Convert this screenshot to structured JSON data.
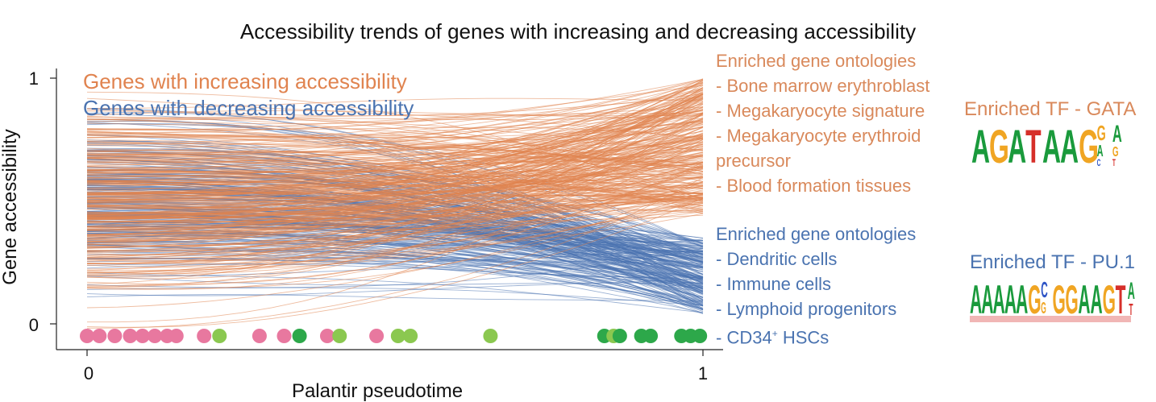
{
  "title": "Accessibility trends of genes with increasing and decreasing accessibility",
  "legend": {
    "increasing": "Genes with increasing accessibility",
    "decreasing": "Genes with decreasing accessibility"
  },
  "ontologies_increasing": {
    "header": "Enriched gene ontologies",
    "items": [
      "- Bone marrow erythroblast",
      "- Megakaryocyte signature",
      "- Megakaryocyte erythroid",
      "precursor",
      "- Blood formation tissues"
    ]
  },
  "ontologies_decreasing": {
    "header": "Enriched gene ontologies",
    "items": [
      "- Dendritic cells",
      "- Immune cells",
      "- Lymphoid progenitors"
    ],
    "last_prefix": "- CD34",
    "last_sup": "+",
    "last_suffix": " HSCs"
  },
  "tf_increasing": {
    "label": "Enriched TF - GATA",
    "motif": "AGATAAGGA"
  },
  "tf_decreasing": {
    "label": "Enriched TF - PU.1",
    "motif": "AAAAAGCGGAAGTA"
  },
  "motif_colors": {
    "A": "#1a9a3c",
    "C": "#2f55c6",
    "G": "#f0a523",
    "T": "#d62f2a"
  },
  "chart_data": {
    "type": "line",
    "title": "Accessibility trends of genes with increasing and decreasing accessibility",
    "xlabel": "Palantir pseudotime",
    "ylabel": "Gene accessibility",
    "xlim": [
      0,
      1
    ],
    "ylim": [
      0,
      1
    ],
    "xticks": [
      "0",
      "1"
    ],
    "yticks": [
      "0",
      "1"
    ],
    "grid": false,
    "series": [
      {
        "name": "Genes with increasing accessibility",
        "color": "#e0834f",
        "start_range": [
          0.18,
          0.78
        ],
        "end_range": [
          0.45,
          1.0
        ]
      },
      {
        "name": "Genes with decreasing accessibility",
        "color": "#4a73b0",
        "start_range": [
          0.22,
          0.75
        ],
        "end_range": [
          0.05,
          0.35
        ]
      }
    ],
    "cell_markers": [
      {
        "x": 0.0,
        "color": "#e8789f"
      },
      {
        "x": 0.02,
        "color": "#e8789f"
      },
      {
        "x": 0.045,
        "color": "#e8789f"
      },
      {
        "x": 0.07,
        "color": "#e8789f"
      },
      {
        "x": 0.09,
        "color": "#e8789f"
      },
      {
        "x": 0.11,
        "color": "#e8789f"
      },
      {
        "x": 0.13,
        "color": "#e8789f"
      },
      {
        "x": 0.145,
        "color": "#e8789f"
      },
      {
        "x": 0.19,
        "color": "#e8789f"
      },
      {
        "x": 0.215,
        "color": "#8bc850"
      },
      {
        "x": 0.28,
        "color": "#e8789f"
      },
      {
        "x": 0.32,
        "color": "#e8789f"
      },
      {
        "x": 0.345,
        "color": "#2da84a"
      },
      {
        "x": 0.39,
        "color": "#e8789f"
      },
      {
        "x": 0.41,
        "color": "#8bc850"
      },
      {
        "x": 0.47,
        "color": "#e8789f"
      },
      {
        "x": 0.505,
        "color": "#8bc850"
      },
      {
        "x": 0.525,
        "color": "#8bc850"
      },
      {
        "x": 0.655,
        "color": "#8bc850"
      },
      {
        "x": 0.84,
        "color": "#2da84a"
      },
      {
        "x": 0.855,
        "color": "#8bc850"
      },
      {
        "x": 0.865,
        "color": "#2da84a"
      },
      {
        "x": 0.9,
        "color": "#2da84a"
      },
      {
        "x": 0.915,
        "color": "#2da84a"
      },
      {
        "x": 0.965,
        "color": "#2da84a"
      },
      {
        "x": 0.98,
        "color": "#2da84a"
      },
      {
        "x": 0.995,
        "color": "#2da84a"
      }
    ]
  }
}
